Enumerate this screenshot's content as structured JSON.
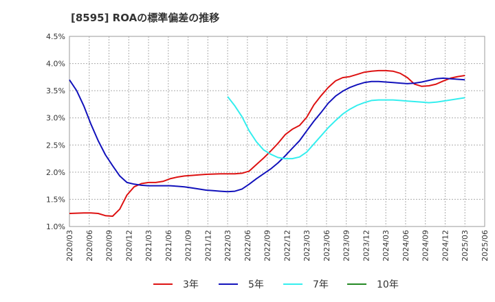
{
  "chart_data": {
    "type": "line",
    "title": "[8595]  ROAの標準偏差の推移",
    "xlabel": "",
    "ylabel": "",
    "ylim": [
      1.0,
      4.5
    ],
    "yticks": [
      "1.0%",
      "1.5%",
      "2.0%",
      "2.5%",
      "3.0%",
      "3.5%",
      "4.0%",
      "4.5%"
    ],
    "xticks": [
      "2020/03",
      "2020/06",
      "2020/09",
      "2020/12",
      "2021/03",
      "2021/06",
      "2021/09",
      "2021/12",
      "2022/03",
      "2022/06",
      "2022/09",
      "2022/12",
      "2023/03",
      "2023/06",
      "2023/09",
      "2023/12",
      "2024/03",
      "2024/06",
      "2024/09",
      "2024/12",
      "2025/03",
      "2025/06"
    ],
    "grid": true,
    "legend_position": "bottom",
    "series": [
      {
        "name": "3年",
        "color": "#dd1111",
        "values": [
          1.24,
          1.245,
          1.25,
          1.25,
          1.24,
          1.2,
          1.19,
          1.32,
          1.58,
          1.73,
          1.79,
          1.81,
          1.81,
          1.83,
          1.88,
          1.91,
          1.93,
          1.94,
          1.95,
          1.96,
          1.965,
          1.97,
          1.97,
          1.97,
          1.98,
          2.02,
          2.14,
          2.26,
          2.39,
          2.53,
          2.69,
          2.79,
          2.86,
          3.01,
          3.24,
          3.41,
          3.56,
          3.68,
          3.74,
          3.76,
          3.8,
          3.84,
          3.86,
          3.87,
          3.87,
          3.86,
          3.82,
          3.74,
          3.62,
          3.58,
          3.59,
          3.62,
          3.68,
          3.73,
          3.76,
          3.78
        ]
      },
      {
        "name": "5年",
        "color": "#1111bb",
        "values": [
          3.7,
          3.5,
          3.22,
          2.88,
          2.58,
          2.32,
          2.12,
          1.93,
          1.81,
          1.78,
          1.76,
          1.75,
          1.75,
          1.75,
          1.75,
          1.74,
          1.73,
          1.71,
          1.69,
          1.67,
          1.66,
          1.65,
          1.64,
          1.65,
          1.69,
          1.78,
          1.88,
          1.97,
          2.06,
          2.17,
          2.3,
          2.44,
          2.58,
          2.76,
          2.94,
          3.1,
          3.27,
          3.4,
          3.49,
          3.56,
          3.61,
          3.65,
          3.67,
          3.67,
          3.66,
          3.65,
          3.64,
          3.63,
          3.64,
          3.66,
          3.69,
          3.72,
          3.73,
          3.72,
          3.71,
          3.7
        ]
      },
      {
        "name": "7年",
        "color": "#33eeee",
        "values": [
          null,
          null,
          null,
          null,
          null,
          null,
          null,
          null,
          null,
          null,
          null,
          null,
          null,
          null,
          null,
          null,
          null,
          null,
          null,
          null,
          null,
          null,
          3.39,
          3.22,
          3.02,
          2.76,
          2.56,
          2.41,
          2.33,
          2.27,
          2.25,
          2.25,
          2.28,
          2.37,
          2.52,
          2.67,
          2.82,
          2.95,
          3.07,
          3.16,
          3.23,
          3.28,
          3.32,
          3.33,
          3.33,
          3.33,
          3.32,
          3.31,
          3.3,
          3.29,
          3.28,
          3.29,
          3.31,
          3.33,
          3.35,
          3.37
        ]
      },
      {
        "name": "10年",
        "color": "#228822",
        "values": []
      }
    ]
  }
}
